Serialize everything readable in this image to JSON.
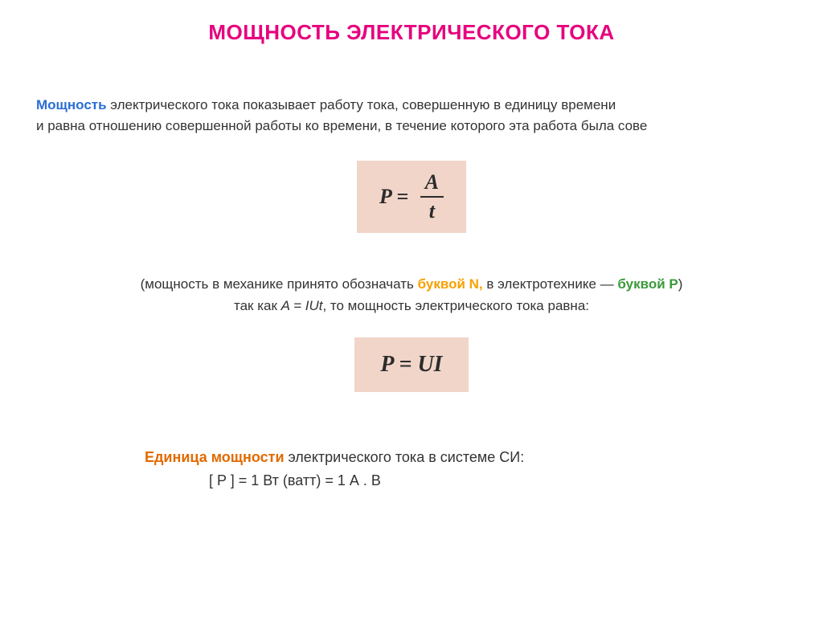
{
  "title": "МОЩНОСТЬ ЭЛЕКТРИЧЕСКОГО ТОКА",
  "definition": {
    "power_word": "Мощность",
    "rest1": " электрического тока показывает работу тока, совершенную в единицу времени",
    "line2": "и равна отношению совершенной работы ко времени, в течение которого эта работа была сове"
  },
  "formula1": {
    "lhs": "P = ",
    "num": "A",
    "den": "t",
    "box_bg": "#f1d5c9",
    "text_color": "#2b2b2b",
    "fontsize": 26
  },
  "mid": {
    "open": "(мощность в механике принято обозначать ",
    "letterN": "буквой N,",
    "mid1": " в электротехнике ",
    "dash": "—",
    "letterP": " буквой P",
    "close": ")",
    "line2a": "так как ",
    "line2b": "A = IUt",
    "line2c": ", то мощность электрического тока равна:"
  },
  "formula2": {
    "text": "P = UI",
    "box_bg": "#f1d5c9",
    "fontsize": 28
  },
  "si": {
    "part1": "Единица мощности",
    "part2": " электрического тока в системе СИ:",
    "line2": "[ P ] = 1 Вт (ватт) = 1 А . В"
  },
  "colors": {
    "title": "#e6007e",
    "blue": "#2a6dd4",
    "orange_bold": "#f6a100",
    "green_bold": "#3a9a3a",
    "orange2": "#e26a00",
    "text": "#333333",
    "bg": "#ffffff"
  }
}
